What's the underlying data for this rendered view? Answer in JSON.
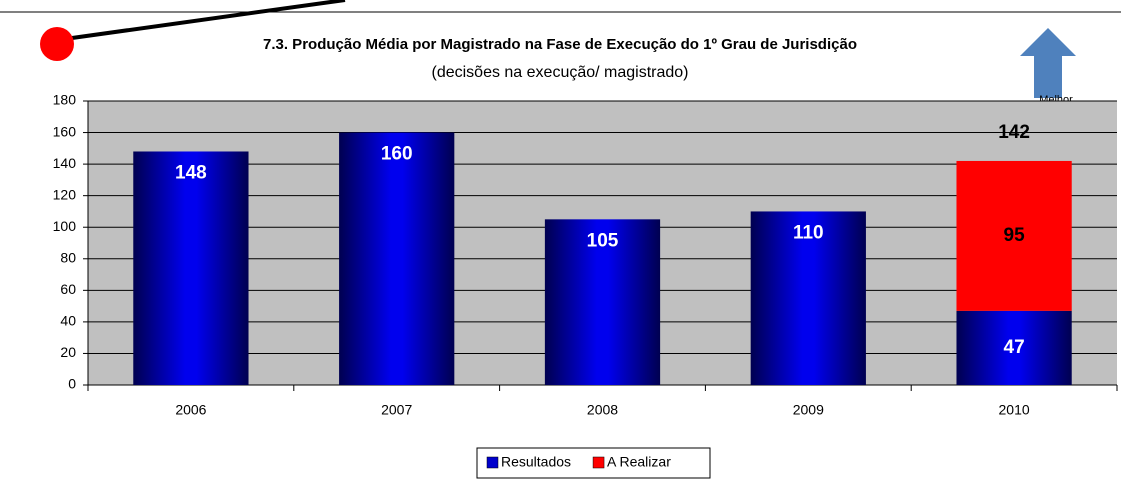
{
  "chart_data": {
    "type": "stacked_bar",
    "title": "7.3. Produção Média por Magistrado na Fase de Execução do 1º Grau de Jurisdição",
    "subtitle": "(decisões na execução/ magistrado)",
    "annotation": "Melhor",
    "categories": [
      "2006",
      "2007",
      "2008",
      "2009",
      "2010"
    ],
    "series": [
      {
        "name": "Resultados",
        "color": "#0000cc",
        "values": [
          148,
          160,
          105,
          110,
          47
        ]
      },
      {
        "name": "A Realizar",
        "color": "#ff0000",
        "values": [
          null,
          null,
          null,
          null,
          95
        ]
      }
    ],
    "totals": [
      null,
      null,
      null,
      null,
      142
    ],
    "ylim": [
      0,
      180
    ],
    "yticks": [
      0,
      20,
      40,
      60,
      80,
      100,
      120,
      140,
      160,
      180
    ],
    "grid": true,
    "legend": "bottom"
  }
}
